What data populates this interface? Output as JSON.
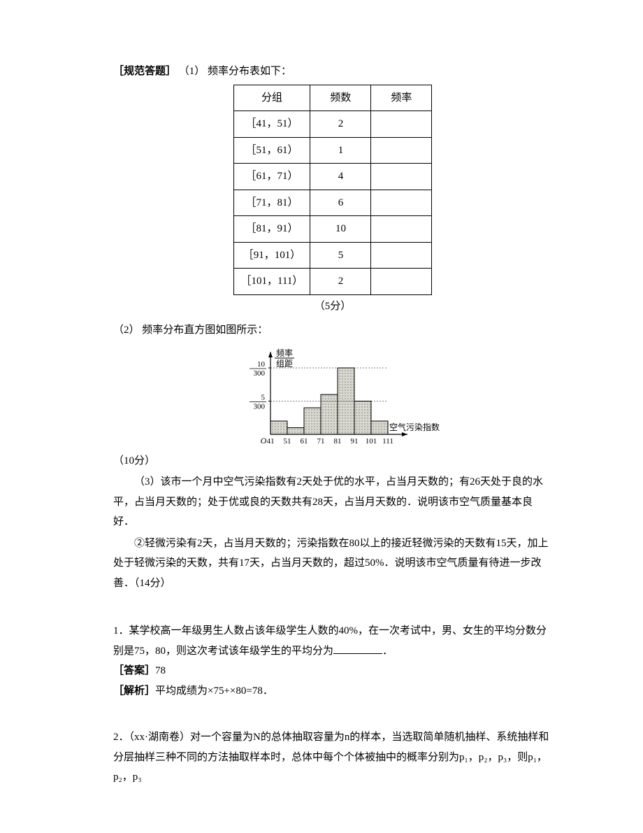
{
  "answer_header": {
    "label": "［规范答题］",
    "part1_label": "（1）",
    "part1_text": "频率分布表如下：",
    "table": {
      "columns": [
        "分组",
        "频数",
        "频率"
      ],
      "rows": [
        [
          "［41，51）",
          "2",
          ""
        ],
        [
          "［51，61）",
          "1",
          ""
        ],
        [
          "［61，71）",
          "4",
          ""
        ],
        [
          "［71，81）",
          "6",
          ""
        ],
        [
          "［81，91）",
          "10",
          ""
        ],
        [
          "［91，101）",
          "5",
          ""
        ],
        [
          "［101，111）",
          "2",
          ""
        ]
      ]
    },
    "points1": "（5分）"
  },
  "part2": {
    "label": "（2）",
    "text": "频率分布直方图如图所示：",
    "points": "（10分）",
    "histogram": {
      "type": "histogram",
      "y_label_top": "频率",
      "y_label_bottom": "组距",
      "x_label": "空气污染指数",
      "origin_label": "O",
      "x_ticks": [
        "41",
        "51",
        "61",
        "71",
        "81",
        "91",
        "101",
        "111"
      ],
      "y_ticks": [
        {
          "num": "10",
          "den": "300",
          "pos": 100
        },
        {
          "num": "5",
          "den": "300",
          "pos": 50
        }
      ],
      "bars": [
        20,
        10,
        40,
        60,
        100,
        50,
        20
      ],
      "bar_fill": "#d8d8d0",
      "bar_dot_color": "#555555",
      "axis_color": "#000000",
      "grid_color": "#000000"
    }
  },
  "part3": {
    "line1": "（3）该市一个月中空气污染指数有2天处于优的水平，占当月天数的；有26天处于良的水平，占当月天数的；处于优或良的天数共有28天，占当月天数的．说明该市空气质量基本良好．",
    "line2": "②轻微污染有2天，占当月天数的；污染指数在80以上的接近轻微污染的天数有15天，加上处于轻微污染的天数，共有17天，占当月天数的，超过50%．说明该市空气质量有待进一步改善．（14分）"
  },
  "q1": {
    "num": "1．",
    "text_a": "某学校高一年级男生人数占该年级学生人数的40%，在一次考试中，男、女生的平均分数分别是75，80，则这次考试该年级学生的平均分为",
    "text_b": "．",
    "answer_label": "［答案］",
    "answer_value": "78",
    "analysis_label": "［解析］",
    "analysis_value": "平均成绩为×75+×80=78．"
  },
  "q2": {
    "num": "2．",
    "text": "（xx·湖南卷）对一个容量为N的总体抽取容量为n的样本，当选取简单随机抽样、系统抽样和分层抽样三种不同的方法抽取样本时，总体中每个个体被抽中的概率分别为p₁，p₂，p₃，则p₁，p₂，p₃"
  }
}
